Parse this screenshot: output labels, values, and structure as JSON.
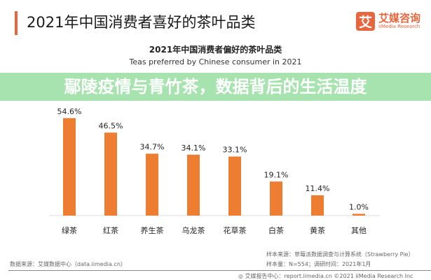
{
  "header": {
    "title": "2021年中国消费者喜好的茶叶品类",
    "logo_mark": "艾",
    "logo_cn": "艾媒咨询",
    "logo_en": "iiMedia Research"
  },
  "colors": {
    "bar": "#ED7D31",
    "accent": "#E8663D",
    "banner": "#96DEA0"
  },
  "chart_data": {
    "type": "bar",
    "title": "2021年中国消费者偏好的茶叶品类",
    "subtitle": "Teas preferred by Chinese consumer in 2021",
    "categories": [
      "绿茶",
      "红茶",
      "养生茶",
      "乌龙茶",
      "花草茶",
      "白茶",
      "黄茶",
      "其他"
    ],
    "values": [
      54.6,
      46.5,
      34.7,
      34.1,
      33.1,
      19.1,
      11.4,
      1.0
    ],
    "labels": [
      "54.6%",
      "46.5%",
      "34.7%",
      "34.1%",
      "33.1%",
      "19.1%",
      "11.4%",
      "1.0%"
    ],
    "ylim": [
      0,
      60
    ],
    "grid": false,
    "legend": "none"
  },
  "banner": {
    "text": "鄢陵疫情与青竹茶，数据背后的生活温度"
  },
  "footer": {
    "source": "数据来源：艾媒数据中心（data.iimedia.cn）",
    "sample_source": "样本来源：草莓派数据调查与计算系统（Strawberry Pie）",
    "sample_size": "样本量：N=554；调研时间：2021年1月",
    "report": "艾媒报告中心：report.iimedia.cn  ©2021  iiMedia Research Inc"
  }
}
